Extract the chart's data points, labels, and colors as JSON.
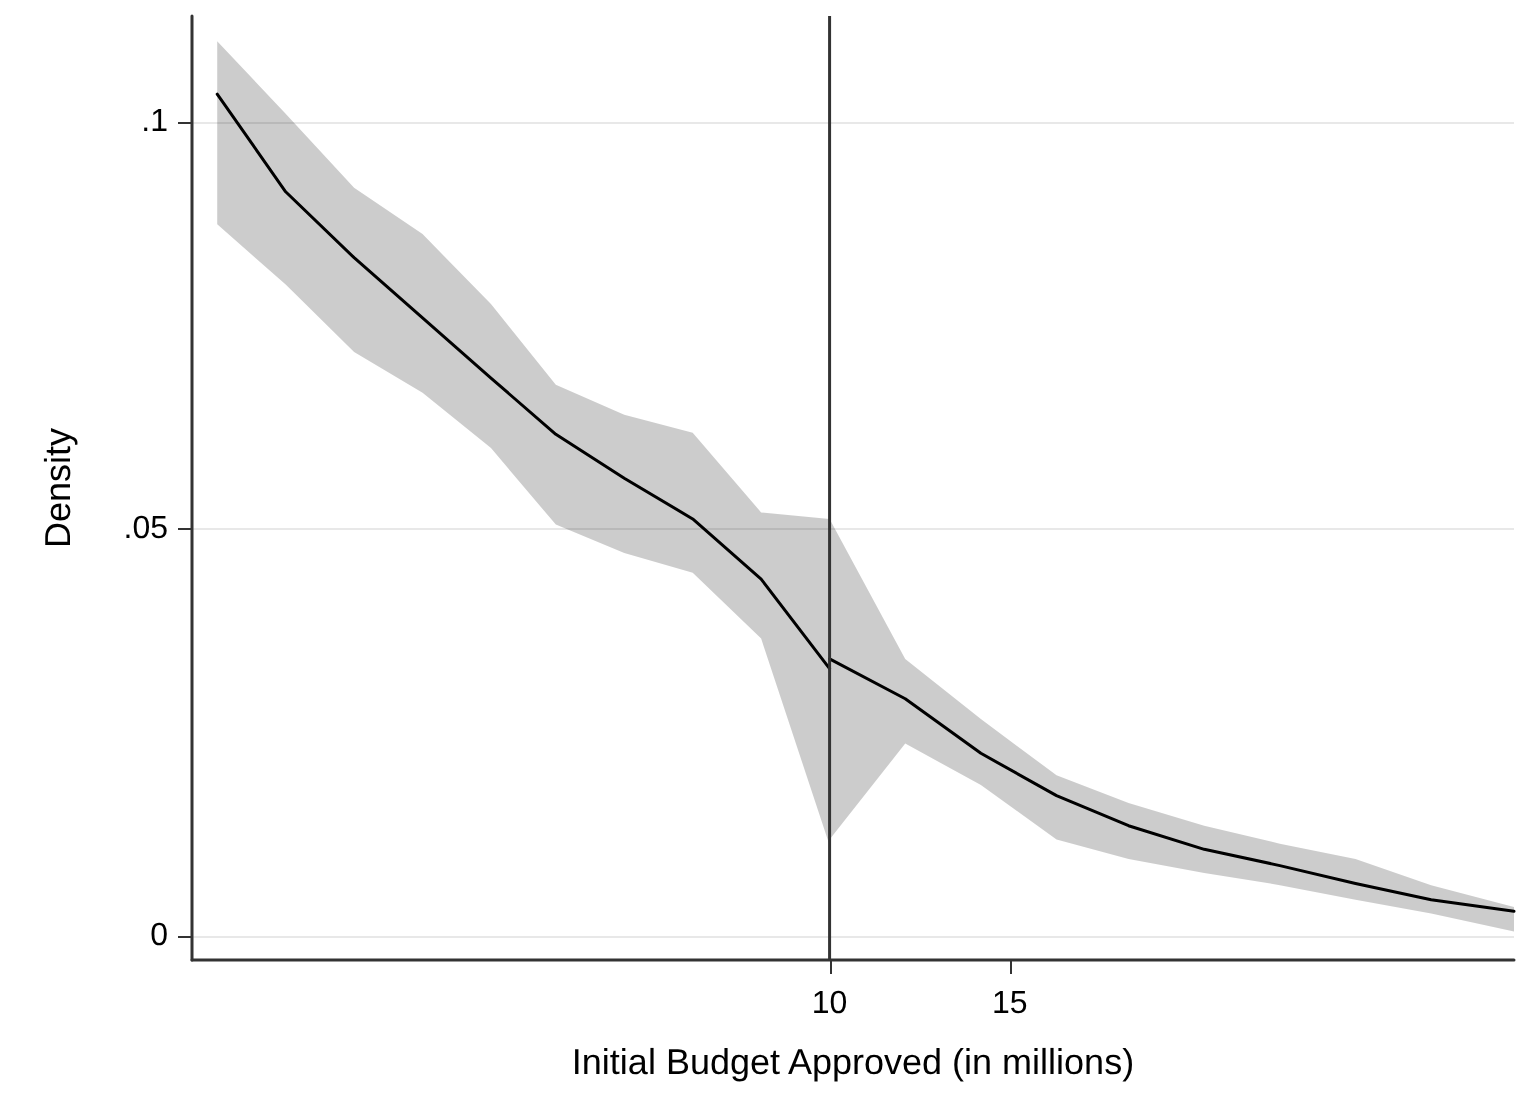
{
  "chart_data": {
    "type": "line",
    "xlabel": "Initial Budget Approved (in millions)",
    "ylabel": "Density",
    "xlim": [
      -7.7,
      29
    ],
    "xticks": [
      10,
      15
    ],
    "ylim": [
      -0.003,
      0.113
    ],
    "yticks": [
      {
        "value": 0,
        "label": "0"
      },
      {
        "value": 0.05,
        "label": ".05"
      },
      {
        "value": 0.1,
        "label": ".1"
      }
    ],
    "grid": "y",
    "marker": "none",
    "line_style": "solid",
    "series": [
      {
        "color": "#000000",
        "x": [
          -7.0,
          -5.1,
          -3.2,
          -1.3,
          0.6,
          2.4,
          4.3,
          6.2,
          8.1,
          10
        ],
        "values": [
          0.1034,
          0.0914,
          0.0833,
          0.0759,
          0.0685,
          0.0616,
          0.0562,
          0.0512,
          0.0438,
          0.0328
        ],
        "lower": [
          0.0874,
          0.08,
          0.0717,
          0.0667,
          0.0599,
          0.0505,
          0.047,
          0.0446,
          0.0365,
          0.0111
        ],
        "upper": [
          0.1099,
          0.101,
          0.0919,
          0.0862,
          0.0776,
          0.0677,
          0.064,
          0.0618,
          0.052,
          0.0512
        ]
      },
      {
        "color": "#000000",
        "x": [
          10,
          12.1,
          14.2,
          16.3,
          18.3,
          20.4,
          22.5,
          24.6,
          26.7,
          29
        ],
        "values": [
          0.034,
          0.0291,
          0.0224,
          0.0172,
          0.0135,
          0.0106,
          0.0086,
          0.0064,
          0.0044,
          0.003
        ],
        "lower": [
          0.0118,
          0.0236,
          0.0185,
          0.0118,
          0.0094,
          0.0077,
          0.0062,
          0.0044,
          0.0027,
          0.0005
        ],
        "upper": [
          0.0512,
          0.034,
          0.0266,
          0.0197,
          0.0163,
          0.0135,
          0.0113,
          0.0094,
          0.0062,
          0.0035
        ]
      }
    ],
    "ref_lines": [
      {
        "axis": "x",
        "value": 10,
        "color": "#333333"
      }
    ]
  }
}
